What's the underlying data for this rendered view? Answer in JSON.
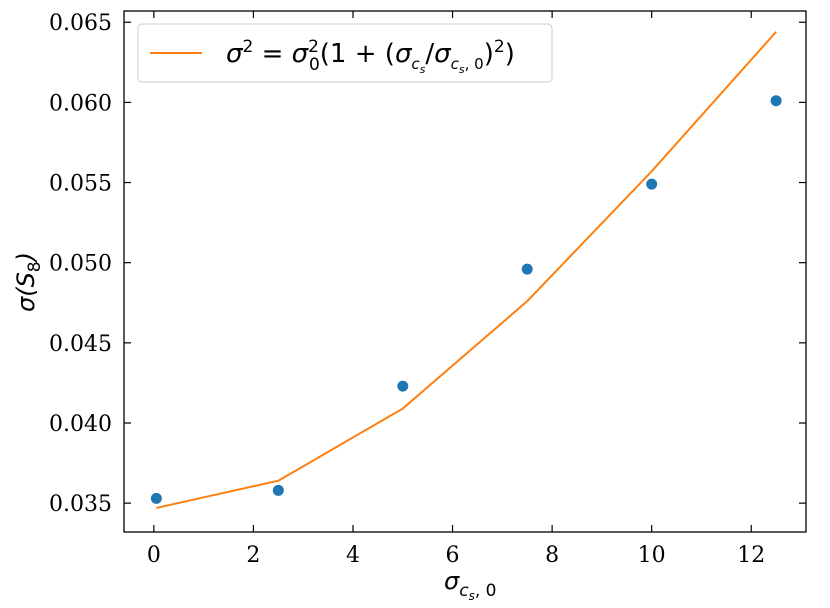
{
  "chart_data": {
    "type": "scatter",
    "xlabel": "σ_{c_s,0}",
    "ylabel": "σ(S_8)",
    "xlim": [
      -0.6,
      13.1
    ],
    "ylim": [
      0.0332,
      0.0657
    ],
    "x_ticks": [
      0,
      2,
      4,
      6,
      8,
      10,
      12
    ],
    "y_ticks": [
      0.035,
      0.04,
      0.045,
      0.05,
      0.055,
      0.06,
      0.065
    ],
    "x_tick_labels": [
      "0",
      "2",
      "4",
      "6",
      "8",
      "10",
      "12"
    ],
    "y_tick_labels": [
      "0.035",
      "0.040",
      "0.045",
      "0.050",
      "0.055",
      "0.060",
      "0.065"
    ],
    "grid": false,
    "legend_position": "top-left",
    "series": [
      {
        "kind": "scatter",
        "color": "#1f77b4",
        "x": [
          0.05,
          2.5,
          5.0,
          7.5,
          10.0,
          12.5
        ],
        "y": [
          0.0353,
          0.0358,
          0.0423,
          0.0496,
          0.0549,
          0.0601
        ]
      },
      {
        "kind": "line",
        "name": "σ² = σ₀²(1 + (σ_{c_s}/σ_{c_s,0})²)",
        "color": "#ff7f0e",
        "x": [
          0.05,
          2.5,
          5.0,
          7.5,
          10.0,
          12.5
        ],
        "y": [
          0.0347,
          0.0364,
          0.0409,
          0.0476,
          0.0557,
          0.0644
        ]
      }
    ]
  }
}
